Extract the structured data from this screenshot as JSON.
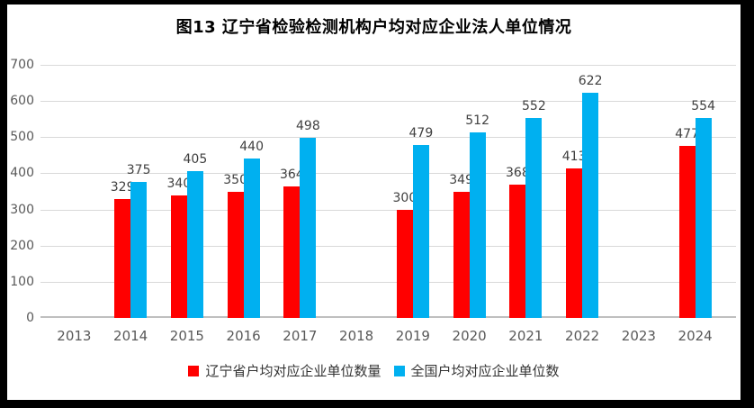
{
  "title": "图13 辽宁省检验检测机构户均对应企业法人单位情况",
  "chart_data": {
    "type": "bar",
    "title": "图13 辽宁省检验检测机构户均对应企业法人单位情况",
    "categories": [
      "2013",
      "2014",
      "2015",
      "2016",
      "2017",
      "2018",
      "2019",
      "2020",
      "2021",
      "2022",
      "2023",
      "2024"
    ],
    "series": [
      {
        "name": "辽宁省户均对应企业单位数量",
        "color": "#FF0000",
        "values": [
          null,
          329,
          340,
          350,
          364,
          null,
          300,
          349,
          368,
          413,
          null,
          477
        ]
      },
      {
        "name": "全国户均对应企业单位数",
        "color": "#00B0F0",
        "values": [
          null,
          375,
          405,
          440,
          498,
          null,
          479,
          512,
          552,
          622,
          null,
          554
        ]
      }
    ],
    "xlabel": "",
    "ylabel": "",
    "ylim": [
      0,
      700
    ],
    "yticks": [
      0,
      100,
      200,
      300,
      400,
      500,
      600,
      700
    ],
    "grid": true,
    "legend_position": "bottom"
  },
  "colors": {
    "liaoning_series": "#FF0000",
    "national_series": "#00B0F0",
    "gridline": "#D9D9D9",
    "axis_line": "#BFBFBF",
    "tick_label": "#595959",
    "data_label": "#404040",
    "frame": "#000000",
    "background": "#FFFFFF"
  }
}
